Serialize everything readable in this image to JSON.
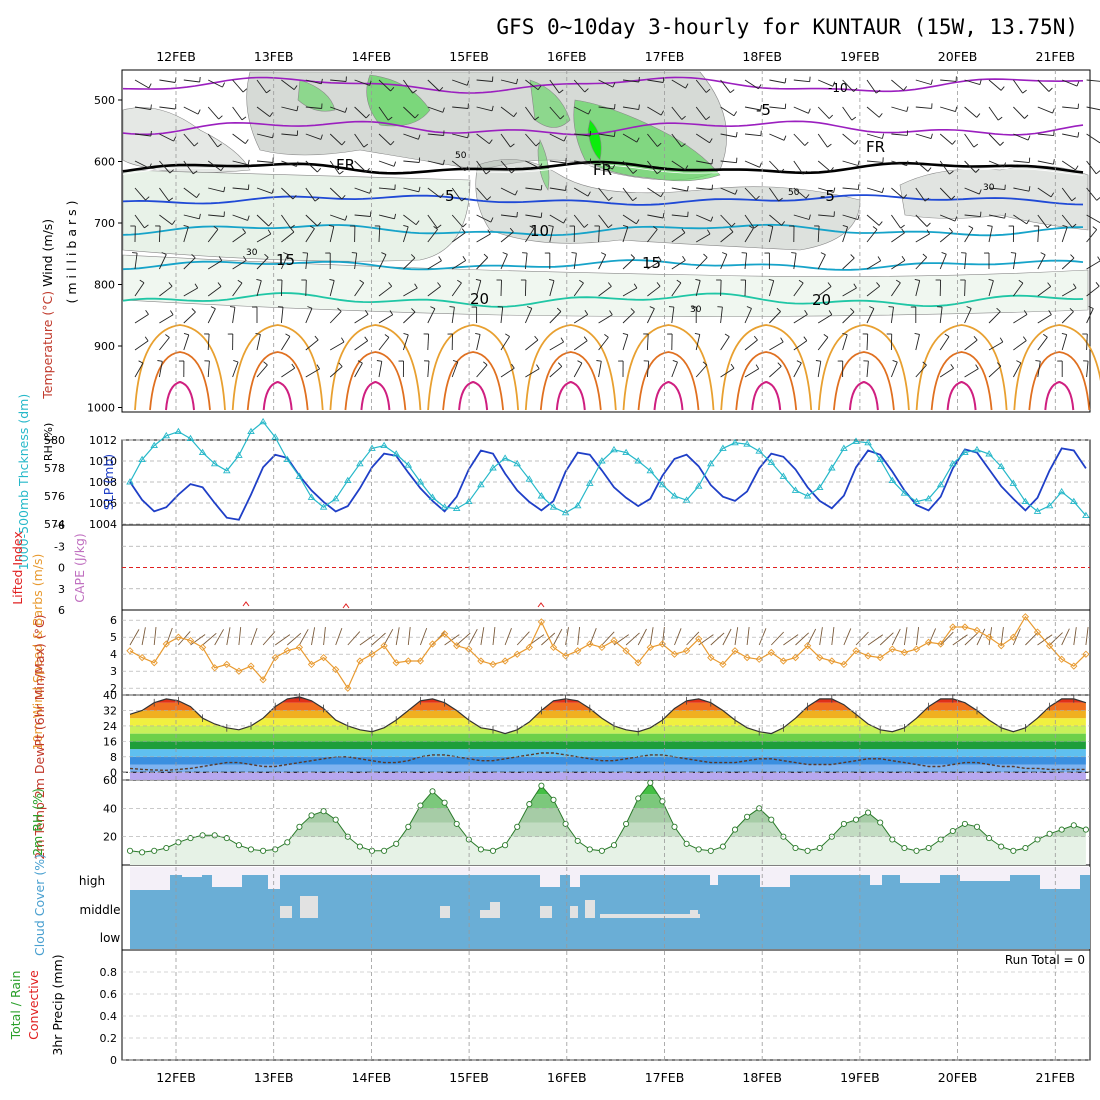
{
  "title": "GFS 0~10day 3-hourly for KUNTAUR (15W, 13.75N)",
  "colors": {
    "rh_green": "#5cd65c",
    "rh_gray": "#b4bcb4",
    "temp_purple": "#9b1fbf",
    "temp_blue": "#1f49d6",
    "temp_cyan": "#16a3c9",
    "temp_teal": "#1fc6a5",
    "temp_orange": "#e8a030",
    "temp_red": "#cf1f80",
    "slp": "#1f3fc7",
    "thick": "#26b8c9",
    "lifted": "#e02020",
    "wind10": "#e89a30",
    "cloud": "#6aaed6",
    "rh2m": "#2aa02a"
  },
  "chart_data": [
    {
      "type": "contour",
      "panel": "upper-air",
      "ylabel_top": "Wind (m/s)",
      "ylabel_temp": "Temperature (°C)",
      "ylabel_rh": "RH (%)",
      "ylabel_units": "(millibars)",
      "x_labels": [
        "12FEB",
        "13FEB",
        "14FEB",
        "15FEB",
        "16FEB",
        "17FEB",
        "18FEB",
        "19FEB",
        "20FEB",
        "21FEB"
      ],
      "yticks": [
        "500",
        "600",
        "700",
        "800",
        "900",
        "1000"
      ],
      "isotherm_labels": [
        {
          "text": "-10"
        },
        {
          "text": "-5"
        },
        {
          "text": "FR"
        },
        {
          "text": "FR"
        },
        {
          "text": "FR"
        },
        {
          "text": "5"
        },
        {
          "text": "-5"
        },
        {
          "text": "10"
        },
        {
          "text": "15"
        },
        {
          "text": "15"
        },
        {
          "text": "20"
        },
        {
          "text": "20"
        }
      ],
      "rh_labels": [
        "30",
        "50",
        "30",
        "50",
        "30"
      ]
    },
    {
      "type": "line",
      "panel": "slp-thickness",
      "ylabel_left": "1000-500mb Thckness (dm)",
      "ylabel_right": "SLP (mb)",
      "yticks_left": [
        "574",
        "576",
        "578",
        "580"
      ],
      "yticks_right": [
        "1004",
        "1006",
        "1008",
        "1010",
        "1012"
      ],
      "ylim_slp": [
        1004,
        1012
      ],
      "series": [
        {
          "name": "SLP",
          "values": [
            1008,
            1006.3,
            1005.2,
            1005.6,
            1006.8,
            1007.8,
            1007.5,
            1006,
            1004.6,
            1004.4,
            1006.8,
            1009.4,
            1010.6,
            1010.3,
            1008.6,
            1007.2,
            1006.1,
            1005.2,
            1005.7,
            1007.4,
            1009.4,
            1010.7,
            1010.5,
            1008.9,
            1007.4,
            1006.2,
            1005.2,
            1006.6,
            1009.2,
            1011,
            1010.7,
            1008.8,
            1007.2,
            1006.1,
            1005.3,
            1006.2,
            1009,
            1010.8,
            1010.6,
            1009.1,
            1007.5,
            1006.5,
            1005.7,
            1006.4,
            1008.6,
            1010.2,
            1010.6,
            1009.5,
            1007.7,
            1006.6,
            1006.2,
            1007.1,
            1009.3,
            1010.7,
            1010.4,
            1009.2,
            1007.5,
            1006.2,
            1005.5,
            1006.7,
            1009.4,
            1011,
            1010.6,
            1009,
            1007.2,
            1005.8,
            1005.3,
            1006.6,
            1009.3,
            1011.1,
            1010.8,
            1009.2,
            1007.6,
            1006.4,
            1005.3,
            1006.5,
            1009.1,
            1011.2,
            1011,
            1009.3
          ]
        },
        {
          "name": "Thickness",
          "values": [
            577,
            578.6,
            579.6,
            580.3,
            580.6,
            580.1,
            579.1,
            578.3,
            577.8,
            578.9,
            580.6,
            581.3,
            580.2,
            578.6,
            577.4,
            575.9,
            575.2,
            575.8,
            577.1,
            578.3,
            579.4,
            579.6,
            579,
            578.2,
            577,
            575.9,
            575.2,
            575.1,
            575.6,
            576.8,
            578,
            578.7,
            578.3,
            577.2,
            576,
            575.2,
            574.8,
            575.3,
            576.9,
            578.5,
            579.3,
            579.1,
            578.5,
            577.8,
            576.8,
            576,
            575.7,
            576.7,
            578.3,
            579.4,
            579.8,
            579.7,
            579.2,
            578.4,
            577.4,
            576.4,
            576,
            576.6,
            578,
            579.4,
            579.9,
            579.8,
            578.6,
            577.1,
            576.2,
            575.6,
            575.8,
            576.8,
            578.3,
            579.1,
            579.3,
            579,
            578.1,
            576.9,
            575.6,
            574.9,
            575.3,
            576.3,
            575.6,
            574.6
          ]
        }
      ]
    },
    {
      "type": "line",
      "panel": "cape-li",
      "ylabel_left": "Lifted Index",
      "ylabel_right": "CAPE (J/kg)",
      "yticks": [
        "-6",
        "-3",
        "0",
        "3",
        "6"
      ],
      "ylim": [
        -6,
        6
      ]
    },
    {
      "type": "line",
      "panel": "wind10m",
      "ylabel": "10m Wind Speed & Barbs (m/s)",
      "yticks": [
        "2",
        "3",
        "4",
        "5",
        "6"
      ],
      "ylim": [
        1.6,
        6.6
      ],
      "series": [
        {
          "name": "10m Wind Speed",
          "values": [
            4.2,
            3.8,
            3.5,
            4.6,
            5.0,
            4.8,
            4.4,
            3.2,
            3.4,
            3.0,
            3.3,
            2.5,
            3.8,
            4.2,
            4.4,
            3.4,
            3.8,
            3.1,
            2.0,
            3.6,
            4.0,
            4.5,
            3.5,
            3.6,
            3.6,
            4.6,
            5.2,
            4.5,
            4.3,
            3.6,
            3.4,
            3.6,
            4.0,
            4.4,
            5.9,
            4.4,
            3.9,
            4.2,
            4.6,
            4.4,
            4.8,
            4.2,
            3.5,
            4.4,
            4.6,
            4.0,
            4.2,
            4.9,
            3.8,
            3.4,
            4.2,
            3.8,
            3.7,
            4.1,
            3.6,
            3.8,
            4.5,
            3.8,
            3.6,
            3.4,
            4.2,
            3.9,
            3.8,
            4.3,
            4.1,
            4.3,
            4.7,
            4.6,
            5.6,
            5.6,
            5.4,
            5.0,
            4.5,
            5.0,
            6.2,
            5.3,
            4.5,
            3.7,
            3.3,
            4.0
          ]
        }
      ]
    },
    {
      "type": "area",
      "panel": "temperature",
      "ylabel": "2m Temp 2m DewPt (6hr Min/Max) (°C)",
      "yticks": [
        "0",
        "8",
        "16",
        "24",
        "32",
        "40"
      ],
      "ylim": [
        0,
        40
      ],
      "series": [
        {
          "name": "2m Temp",
          "values": [
            30,
            32,
            36,
            38,
            37,
            34,
            28,
            25,
            23,
            22,
            24,
            28,
            34,
            38,
            39,
            37,
            33,
            27,
            24,
            22,
            21,
            23,
            27,
            32,
            37,
            38,
            36,
            32,
            27,
            23,
            22,
            20,
            22,
            26,
            32,
            37,
            38,
            37,
            33,
            28,
            24,
            22,
            21,
            23,
            27,
            33,
            37,
            38,
            36,
            32,
            27,
            23,
            21,
            20,
            23,
            28,
            34,
            38,
            38,
            35,
            30,
            25,
            22,
            21,
            23,
            28,
            34,
            38,
            38,
            36,
            32,
            27,
            23,
            21,
            23,
            28,
            34,
            38,
            38,
            36
          ]
        },
        {
          "name": "2m DewPt",
          "values": [
            2,
            1.5,
            1.2,
            1,
            1.5,
            2,
            3,
            4,
            5,
            5,
            4,
            3,
            3,
            4,
            5,
            6,
            7,
            8,
            8,
            7,
            6,
            5,
            5,
            6,
            8,
            9,
            9,
            8,
            7,
            6,
            6,
            7,
            8,
            9,
            10,
            10,
            9,
            8,
            7,
            6,
            6,
            7,
            8,
            9,
            9,
            8,
            7,
            6,
            5,
            5,
            5,
            6,
            7,
            7,
            6,
            5,
            4,
            4,
            4,
            5,
            6,
            7,
            7,
            6,
            5,
            4,
            3,
            3,
            4,
            5,
            5,
            4,
            3,
            3,
            2,
            2,
            1.5,
            1.5,
            1.5,
            1.5
          ]
        }
      ]
    },
    {
      "type": "area",
      "panel": "rh2m",
      "ylabel": "2m RH (%)",
      "yticks": [
        "20",
        "40",
        "60"
      ],
      "ylim": [
        0,
        60
      ],
      "series": [
        {
          "name": "2m RH",
          "values": [
            10,
            9,
            10,
            12,
            16,
            19,
            21,
            21,
            19,
            14,
            11,
            10,
            11,
            16,
            27,
            35,
            38,
            32,
            20,
            13,
            10,
            10,
            15,
            27,
            42,
            52,
            44,
            29,
            18,
            11,
            10,
            14,
            27,
            43,
            56,
            46,
            29,
            17,
            11,
            10,
            14,
            29,
            47,
            58,
            45,
            27,
            15,
            11,
            10,
            13,
            25,
            34,
            40,
            32,
            20,
            12,
            10,
            12,
            20,
            29,
            32,
            37,
            30,
            18,
            12,
            10,
            12,
            18,
            24,
            29,
            27,
            19,
            13,
            10,
            12,
            18,
            22,
            25,
            28,
            25
          ]
        }
      ]
    },
    {
      "type": "bar",
      "panel": "cloud-cover",
      "ylabel": "Cloud Cover (%)",
      "levels": [
        "high",
        "middle",
        "low"
      ]
    },
    {
      "type": "bar",
      "panel": "precip",
      "ylabel_left": "Total / Rain",
      "ylabel_right": "Convective",
      "ylabel_units": "3hr Precip (mm)",
      "yticks": [
        "0",
        "0.2",
        "0.4",
        "0.6",
        "0.8"
      ],
      "ylim": [
        0,
        1
      ],
      "annotation": "Run Total = 0"
    }
  ]
}
